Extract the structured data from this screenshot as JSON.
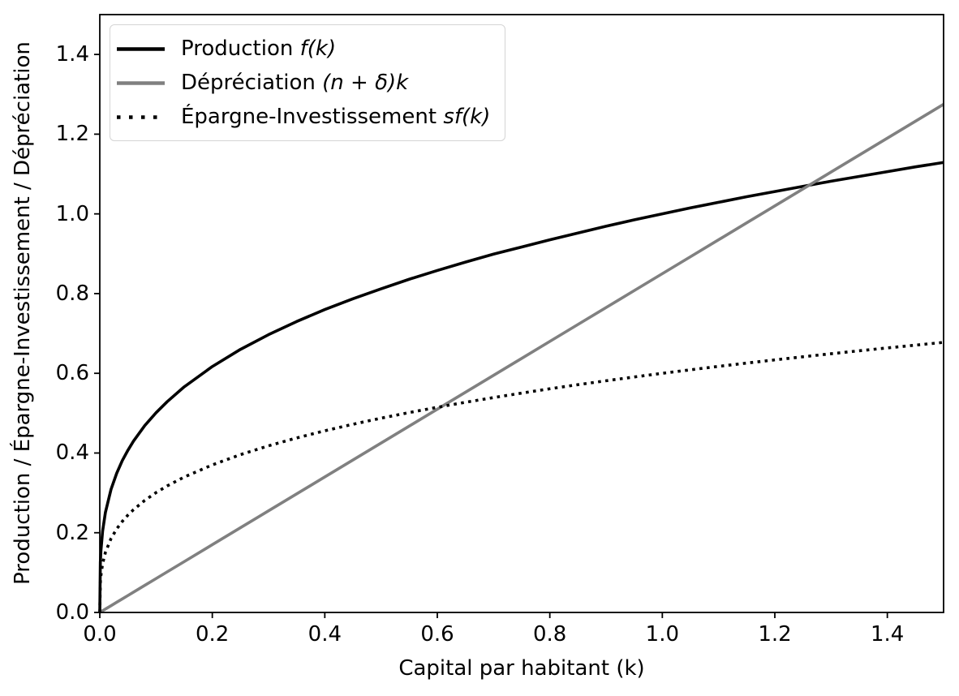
{
  "figure": {
    "background_color": "#ffffff",
    "axis_color": "#000000",
    "legend_border_color": "#d4d4d4"
  },
  "chart_data": {
    "type": "line",
    "title": "",
    "xlabel": "Capital par habitant (k)",
    "ylabel": "Production / Épargne-Investissement / Dépréciation",
    "xlim": [
      0,
      1.5
    ],
    "ylim": [
      0,
      1.5
    ],
    "grid": false,
    "legend_position": "upper left",
    "xtick_labels": [
      "0.0",
      "0.2",
      "0.4",
      "0.6",
      "0.8",
      "1.0",
      "1.2",
      "1.4"
    ],
    "ytick_labels": [
      "0.0",
      "0.2",
      "0.4",
      "0.6",
      "0.8",
      "1.0",
      "1.2",
      "1.4"
    ],
    "x": [
      0,
      0.001,
      0.002,
      0.005,
      0.01,
      0.02,
      0.03,
      0.04,
      0.05,
      0.06,
      0.08,
      0.1,
      0.12,
      0.15,
      0.2,
      0.25,
      0.3,
      0.35,
      0.4,
      0.45,
      0.5,
      0.55,
      0.6,
      0.65,
      0.7,
      0.75,
      0.8,
      0.85,
      0.9,
      0.95,
      1.0,
      1.05,
      1.1,
      1.15,
      1.2,
      1.25,
      1.3,
      1.35,
      1.4,
      1.45,
      1.5
    ],
    "series": [
      {
        "id": "production",
        "name": "Production f(k)",
        "label_plain": "Production ",
        "label_math": "f(k)",
        "color": "#000000",
        "line_style": "solid",
        "values": [
          0,
          0.126,
          0.155,
          0.204,
          0.251,
          0.309,
          0.349,
          0.381,
          0.407,
          0.43,
          0.469,
          0.501,
          0.529,
          0.566,
          0.617,
          0.66,
          0.697,
          0.73,
          0.76,
          0.787,
          0.812,
          0.836,
          0.858,
          0.879,
          0.899,
          0.917,
          0.935,
          0.952,
          0.969,
          0.985,
          1.0,
          1.015,
          1.029,
          1.043,
          1.056,
          1.069,
          1.082,
          1.094,
          1.106,
          1.118,
          1.129
        ]
      },
      {
        "id": "depreciation",
        "name": "Dépréciation (n + δ)k",
        "label_plain": "Dépréciation ",
        "label_math": "(n + δ)k",
        "color": "#808080",
        "line_style": "solid",
        "values": [
          0,
          0.0009,
          0.0017,
          0.0043,
          0.0085,
          0.017,
          0.0255,
          0.034,
          0.0425,
          0.051,
          0.068,
          0.085,
          0.102,
          0.1275,
          0.17,
          0.2125,
          0.255,
          0.2975,
          0.34,
          0.3825,
          0.425,
          0.4675,
          0.51,
          0.5525,
          0.595,
          0.6375,
          0.68,
          0.7225,
          0.765,
          0.8075,
          0.85,
          0.8925,
          0.935,
          0.9775,
          1.02,
          1.0625,
          1.105,
          1.1475,
          1.19,
          1.2325,
          1.275
        ]
      },
      {
        "id": "epargne-investissement",
        "name": "Épargne-Investissement sf(k)",
        "label_plain": "Épargne-Investissement ",
        "label_math": "sf(k)",
        "color": "#000000",
        "line_style": "dotted",
        "values": [
          0,
          0.0755,
          0.093,
          0.1224,
          0.1507,
          0.1855,
          0.2095,
          0.2284,
          0.2443,
          0.258,
          0.2812,
          0.3007,
          0.3176,
          0.3397,
          0.3702,
          0.3959,
          0.4181,
          0.4379,
          0.4558,
          0.4722,
          0.4874,
          0.5015,
          0.5148,
          0.5273,
          0.5391,
          0.5504,
          0.5612,
          0.5715,
          0.5813,
          0.5908,
          0.6,
          0.6088,
          0.6174,
          0.6257,
          0.6337,
          0.6415,
          0.6491,
          0.6565,
          0.6637,
          0.6707,
          0.6776
        ]
      }
    ]
  }
}
